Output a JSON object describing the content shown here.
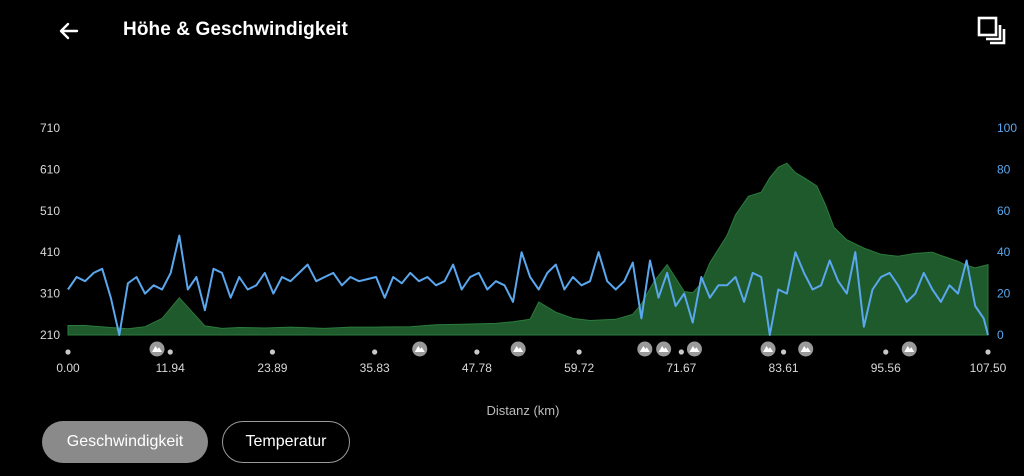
{
  "header": {
    "title": "Höhe & Geschwindigkeit",
    "back_icon": "arrow-left-icon",
    "fullscreen_icon": "fullscreen-icon"
  },
  "buttons": {
    "speed": "Geschwindigkeit",
    "temperature": "Temperatur"
  },
  "colors": {
    "elevation": "#1e5a2c",
    "elevation_edge": "#2b7a3c",
    "speed": "#5aa7ee",
    "left_axis": "#d8d8d8",
    "right_axis": "#5aa7ee",
    "marker": "#9a9a9a"
  },
  "chart_data": {
    "type": "area",
    "xlabel": "Distanz (km)",
    "xlim": [
      0,
      107.5
    ],
    "x_ticks": [
      "0.00",
      "11.94",
      "23.89",
      "35.83",
      "47.78",
      "59.72",
      "71.67",
      "83.61",
      "95.56",
      "107.50"
    ],
    "y_left_ticks": [
      "710",
      "610",
      "510",
      "410",
      "310",
      "210"
    ],
    "y_left_range": [
      210,
      710
    ],
    "y_right_ticks": [
      "100",
      "80",
      "60",
      "40",
      "20",
      "0"
    ],
    "y_right_range": [
      0,
      100
    ],
    "poi_markers_km": [
      10.4,
      41.1,
      52.6,
      67.4,
      69.6,
      73.2,
      81.8,
      86.2,
      98.3
    ],
    "series": [
      {
        "name": "",
        "axis": "left",
        "x": [
          0,
          2,
          5,
          7,
          9,
          11,
          13,
          16,
          18,
          20,
          23,
          26,
          30,
          33,
          36,
          40,
          43,
          46,
          50,
          52,
          54,
          55,
          57,
          59,
          61,
          64,
          66,
          67,
          68.5,
          70,
          71,
          72,
          73,
          74,
          75,
          77,
          78,
          79.5,
          81,
          82,
          83,
          84,
          85,
          86,
          87.5,
          88.5,
          89.5,
          91,
          92,
          93,
          95,
          97,
          99,
          101,
          102,
          103,
          104,
          105,
          106,
          107.5
        ],
        "values": [
          233,
          233,
          228,
          225,
          230,
          250,
          300,
          232,
          226,
          228,
          227,
          229,
          226,
          229,
          229,
          230,
          235,
          236,
          238,
          242,
          248,
          290,
          265,
          250,
          245,
          248,
          260,
          285,
          340,
          380,
          348,
          315,
          312,
          335,
          385,
          450,
          500,
          545,
          555,
          590,
          615,
          625,
          602,
          590,
          570,
          525,
          470,
          440,
          430,
          420,
          405,
          400,
          407,
          410,
          402,
          395,
          388,
          378,
          372,
          380
        ]
      },
      {
        "name": "",
        "axis": "right",
        "x": [
          0,
          1,
          2,
          3,
          4,
          5,
          6,
          7,
          8,
          9,
          10,
          11,
          12,
          13,
          14,
          15,
          16,
          17,
          18,
          19,
          20,
          21,
          22,
          23,
          24,
          25,
          26,
          27,
          28,
          29,
          30,
          31,
          32,
          33,
          34,
          35,
          36,
          37,
          38,
          39,
          40,
          41,
          42,
          43,
          44,
          45,
          46,
          47,
          48,
          49,
          50,
          51,
          52,
          53,
          54,
          55,
          56,
          57,
          58,
          59,
          60,
          61,
          62,
          63,
          64,
          65,
          66,
          67,
          68,
          69,
          70,
          71,
          72,
          73,
          74,
          75,
          76,
          77,
          78,
          79,
          80,
          81,
          82,
          83,
          84,
          85,
          86,
          87,
          88,
          89,
          90,
          91,
          92,
          93,
          94,
          95,
          96,
          97,
          98,
          99,
          100,
          101,
          102,
          103,
          104,
          105,
          106,
          107,
          107.5
        ],
        "values": [
          22,
          28,
          26,
          30,
          32,
          18,
          0,
          25,
          28,
          20,
          24,
          22,
          30,
          48,
          22,
          28,
          12,
          32,
          30,
          18,
          28,
          22,
          24,
          30,
          20,
          28,
          26,
          30,
          34,
          26,
          28,
          30,
          24,
          28,
          26,
          27,
          28,
          18,
          28,
          25,
          30,
          26,
          28,
          24,
          26,
          34,
          22,
          28,
          30,
          22,
          26,
          24,
          16,
          40,
          28,
          22,
          30,
          34,
          22,
          28,
          24,
          26,
          40,
          26,
          22,
          26,
          35,
          8,
          36,
          18,
          30,
          14,
          20,
          6,
          28,
          18,
          24,
          24,
          28,
          16,
          30,
          28,
          0,
          22,
          20,
          40,
          30,
          22,
          24,
          36,
          26,
          20,
          40,
          4,
          22,
          28,
          30,
          24,
          16,
          20,
          30,
          22,
          16,
          24,
          20,
          36,
          14,
          8,
          0
        ]
      }
    ]
  }
}
